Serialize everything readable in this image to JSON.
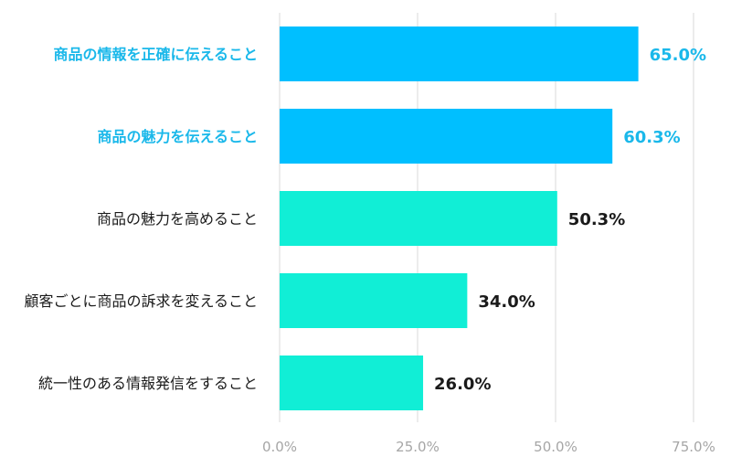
{
  "chart_data": {
    "type": "bar",
    "orientation": "horizontal",
    "categories": [
      "商品の情報を正確に伝えること",
      "商品の魅力を伝えること",
      "商品の魅力を高めること",
      "顧客ごとに商品の訴求を変えること",
      "統一性のある情報発信をすること"
    ],
    "values": [
      65.0,
      60.3,
      50.3,
      34.0,
      26.0
    ],
    "value_labels": [
      "65.0%",
      "60.3%",
      "50.3%",
      "34.0%",
      "26.0%"
    ],
    "highlighted": [
      true,
      true,
      false,
      false,
      false
    ],
    "xlim": [
      0,
      75
    ],
    "x_ticks": [
      0,
      25,
      50,
      75
    ],
    "x_tick_labels": [
      "0.0%",
      "25.0%",
      "50.0%",
      "75.0%"
    ],
    "grid": "vertical",
    "title": "",
    "xlabel": "",
    "ylabel": ""
  },
  "colors": {
    "highlight_bar": "#00bfff",
    "normal_bar": "#11eed6",
    "highlight_text": "#1ab8ea",
    "normal_text": "#1a1a1a",
    "grid": "#d9d9d9",
    "tick_text": "#a6a6a6"
  }
}
